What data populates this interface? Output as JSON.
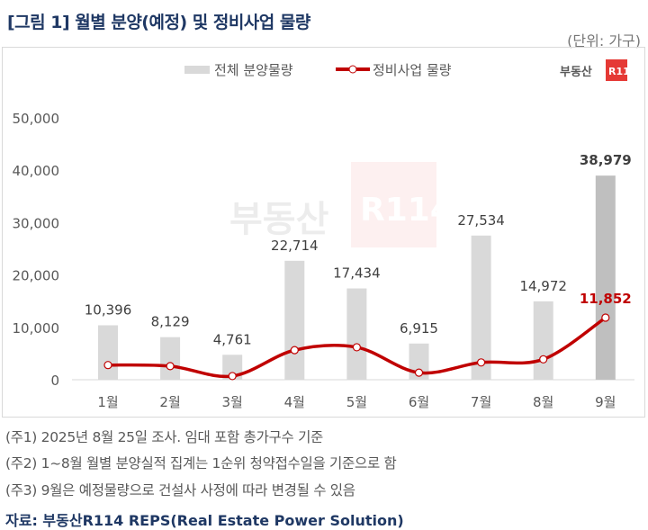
{
  "title": "[그림 1] 월별 분양(예정) 및 정비사업 물량",
  "unit": "(단위: 가구)",
  "logo": "부동산R114",
  "chart_data": {
    "type": "bar+line",
    "categories": [
      "1월",
      "2월",
      "3월",
      "4월",
      "5월",
      "6월",
      "7월",
      "8월",
      "9월"
    ],
    "series": [
      {
        "name": "전체 분양물량",
        "type": "bar",
        "values": [
          10396,
          8129,
          4761,
          22714,
          17434,
          6915,
          27534,
          14972,
          38979
        ],
        "labels": [
          "10,396",
          "8,129",
          "4,761",
          "22,714",
          "17,434",
          "6,915",
          "27,534",
          "14,972",
          "38,979"
        ],
        "color": "#d9d9d9",
        "highlight_color": "#bfbfbf"
      },
      {
        "name": "정비사업 물량",
        "type": "line",
        "values": [
          2800,
          2600,
          700,
          5650,
          6200,
          1350,
          3300,
          3900,
          11852
        ],
        "labels": [
          "",
          "",
          "",
          "",
          "",
          "",
          "",
          "",
          "11,852"
        ],
        "color": "#c00000"
      }
    ],
    "yticks": [
      "0",
      "10,000",
      "20,000",
      "30,000",
      "40,000",
      "50,000"
    ],
    "ylim": [
      0,
      50000
    ],
    "grid": false,
    "legend": "top"
  },
  "notes": [
    "(주1) 2025년 8월 25일 조사. 임대 포함 총가구수 기준",
    "(주2) 1~8월 월별 분양실적 집계는 1순위 청약접수일을 기준으로 함",
    "(주3) 9월은 예정물량으로 건설사 사정에 따라 변경될 수 있음"
  ],
  "source": "자료: 부동산R114 REPS(Real Estate Power Solution)"
}
